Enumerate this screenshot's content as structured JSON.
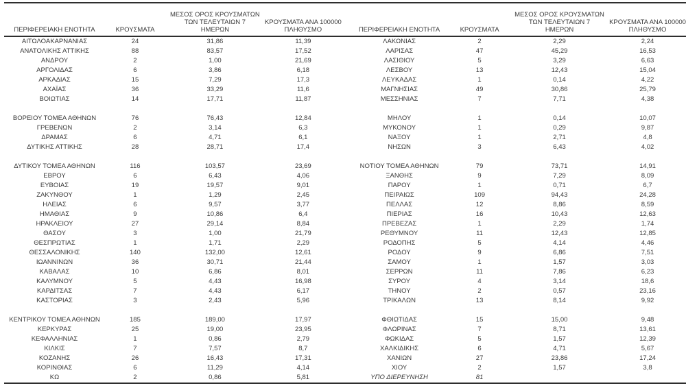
{
  "table": {
    "headers": {
      "region": "ΠΕΡΙΦΕΡΕΙΑΚΗ ΕΝΟΤΗΤΑ",
      "cases": "ΚΡΟΥΣΜΑΤΑ",
      "avg7_lines": [
        "ΜΕΣΟΣ ΟΡΟΣ ΚΡΟΥΣΜΑΤΩΝ",
        "ΤΩΝ ΤΕΛΕΥΤΑΙΩΝ 7",
        "ΗΜΕΡΩΝ"
      ],
      "per100k_lines": [
        "ΚΡΟΥΣΜΑΤΑ ΑΝΑ 100000",
        "ΠΛΗΘΥΣΜΟ"
      ]
    },
    "left_rows": [
      [
        "ΑΙΤΩΛΟΑΚΑΡΝΑΝΙΑΣ",
        "24",
        "31,86",
        "11,39"
      ],
      [
        "ΑΝΑΤΟΛΙΚΗΣ ΑΤΤΙΚΗΣ",
        "88",
        "83,57",
        "17,52"
      ],
      [
        "ΑΝΔΡΟΥ",
        "2",
        "1,00",
        "21,69"
      ],
      [
        "ΑΡΓΟΛΙΔΑΣ",
        "6",
        "3,86",
        "6,18"
      ],
      [
        "ΑΡΚΑΔΙΑΣ",
        "15",
        "7,29",
        "17,3"
      ],
      [
        "ΑΧΑΪΑΣ",
        "36",
        "33,29",
        "11,6"
      ],
      [
        "ΒΟΙΩΤΙΑΣ",
        "14",
        "17,71",
        "11,87"
      ],
      null,
      [
        "ΒΟΡΕΙΟΥ ΤΟΜΕΑ ΑΘΗΝΩΝ",
        "76",
        "76,43",
        "12,84"
      ],
      [
        "ΓΡΕΒΕΝΩΝ",
        "2",
        "3,14",
        "6,3"
      ],
      [
        "ΔΡΑΜΑΣ",
        "6",
        "4,71",
        "6,1"
      ],
      [
        "ΔΥΤΙΚΗΣ ΑΤΤΙΚΗΣ",
        "28",
        "28,71",
        "17,4"
      ],
      null,
      [
        "ΔΥΤΙΚΟΥ ΤΟΜΕΑ ΑΘΗΝΩΝ",
        "116",
        "103,57",
        "23,69"
      ],
      [
        "ΕΒΡΟΥ",
        "6",
        "6,43",
        "4,06"
      ],
      [
        "ΕΥΒΟΙΑΣ",
        "19",
        "19,57",
        "9,01"
      ],
      [
        "ΖΑΚΥΝΘΟΥ",
        "1",
        "1,29",
        "2,45"
      ],
      [
        "ΗΛΕΙΑΣ",
        "6",
        "9,57",
        "3,77"
      ],
      [
        "ΗΜΑΘΙΑΣ",
        "9",
        "10,86",
        "6,4"
      ],
      [
        "ΗΡΑΚΛΕΙΟΥ",
        "27",
        "29,14",
        "8,84"
      ],
      [
        "ΘΑΣΟΥ",
        "3",
        "1,00",
        "21,79"
      ],
      [
        "ΘΕΣΠΡΩΤΙΑΣ",
        "1",
        "1,71",
        "2,29"
      ],
      [
        "ΘΕΣΣΑΛΟΝΙΚΗΣ",
        "140",
        "132,00",
        "12,61"
      ],
      [
        "ΙΩΑΝΝΙΝΩΝ",
        "36",
        "30,71",
        "21,44"
      ],
      [
        "ΚΑΒΑΛΑΣ",
        "10",
        "6,86",
        "8,01"
      ],
      [
        "ΚΑΛΥΜΝΟΥ",
        "5",
        "4,43",
        "16,98"
      ],
      [
        "ΚΑΡΔΙΤΣΑΣ",
        "7",
        "4,43",
        "6,17"
      ],
      [
        "ΚΑΣΤΟΡΙΑΣ",
        "3",
        "2,43",
        "5,96"
      ],
      null,
      [
        "ΚΕΝΤΡΙΚΟΥ ΤΟΜΕΑ ΑΘΗΝΩΝ",
        "185",
        "189,00",
        "17,97"
      ],
      [
        "ΚΕΡΚΥΡΑΣ",
        "25",
        "19,00",
        "23,95"
      ],
      [
        "ΚΕΦΑΛΛΗΝΙΑΣ",
        "1",
        "0,86",
        "2,79"
      ],
      [
        "ΚΙΛΚΙΣ",
        "7",
        "7,57",
        "8,7"
      ],
      [
        "ΚΟΖΑΝΗΣ",
        "26",
        "16,43",
        "17,31"
      ],
      [
        "ΚΟΡΙΝΘΙΑΣ",
        "6",
        "11,29",
        "4,14"
      ],
      [
        "ΚΩ",
        "2",
        "0,86",
        "5,81"
      ]
    ],
    "right_rows": [
      [
        "ΛΑΚΩΝΙΑΣ",
        "2",
        "2,29",
        "2,24"
      ],
      [
        "ΛΑΡΙΣΑΣ",
        "47",
        "45,29",
        "16,53"
      ],
      [
        "ΛΑΣΙΘΙΟΥ",
        "5",
        "3,29",
        "6,63"
      ],
      [
        "ΛΕΣΒΟΥ",
        "13",
        "12,43",
        "15,04"
      ],
      [
        "ΛΕΥΚΑΔΑΣ",
        "1",
        "0,14",
        "4,22"
      ],
      [
        "ΜΑΓΝΗΣΙΑΣ",
        "49",
        "30,86",
        "25,79"
      ],
      [
        "ΜΕΣΣΗΝΙΑΣ",
        "7",
        "7,71",
        "4,38"
      ],
      null,
      [
        "ΜΗΛΟΥ",
        "1",
        "0,14",
        "10,07"
      ],
      [
        "ΜΥΚΟΝΟΥ",
        "1",
        "0,29",
        "9,87"
      ],
      [
        "ΝΑΞΟΥ",
        "1",
        "2,71",
        "4,8"
      ],
      [
        "ΝΗΣΩΝ",
        "3",
        "6,43",
        "4,02"
      ],
      null,
      [
        "ΝΟΤΙΟΥ ΤΟΜΕΑ ΑΘΗΝΩΝ",
        "79",
        "73,71",
        "14,91"
      ],
      [
        "ΞΑΝΘΗΣ",
        "9",
        "7,29",
        "8,09"
      ],
      [
        "ΠΑΡΟΥ",
        "1",
        "0,71",
        "6,7"
      ],
      [
        "ΠΕΙΡΑΙΩΣ",
        "109",
        "94,43",
        "24,28"
      ],
      [
        "ΠΕΛΛΑΣ",
        "12",
        "8,86",
        "8,59"
      ],
      [
        "ΠΙΕΡΙΑΣ",
        "16",
        "10,43",
        "12,63"
      ],
      [
        "ΠΡΕΒΕΖΑΣ",
        "1",
        "2,29",
        "1,74"
      ],
      [
        "ΡΕΘΥΜΝΟΥ",
        "11",
        "12,43",
        "12,85"
      ],
      [
        "ΡΟΔΟΠΗΣ",
        "5",
        "4,14",
        "4,46"
      ],
      [
        "ΡΟΔΟΥ",
        "9",
        "6,86",
        "7,51"
      ],
      [
        "ΣΑΜΟΥ",
        "1",
        "1,57",
        "3,03"
      ],
      [
        "ΣΕΡΡΩΝ",
        "11",
        "7,86",
        "6,23"
      ],
      [
        "ΣΥΡΟΥ",
        "4",
        "3,14",
        "18,6"
      ],
      [
        "ΤΗΝΟΥ",
        "2",
        "0,57",
        "23,16"
      ],
      [
        "ΤΡΙΚΑΛΩΝ",
        "13",
        "8,14",
        "9,92"
      ],
      null,
      [
        "ΦΘΙΩΤΙΔΑΣ",
        "15",
        "15,00",
        "9,48"
      ],
      [
        "ΦΛΩΡΙΝΑΣ",
        "7",
        "8,71",
        "13,61"
      ],
      [
        "ΦΩΚΙΔΑΣ",
        "5",
        "1,57",
        "12,39"
      ],
      [
        "ΧΑΛΚΙΔΙΚΗΣ",
        "6",
        "4,71",
        "5,67"
      ],
      [
        "ΧΑΝΙΩΝ",
        "27",
        "23,86",
        "17,24"
      ],
      [
        "ΧΙΟΥ",
        "2",
        "1,57",
        "3,8"
      ],
      {
        "cells": [
          "ΥΠΟ ΔΙΕΡΕΥΝΗΣΗ",
          "81",
          "",
          ""
        ],
        "italic": true
      }
    ]
  }
}
